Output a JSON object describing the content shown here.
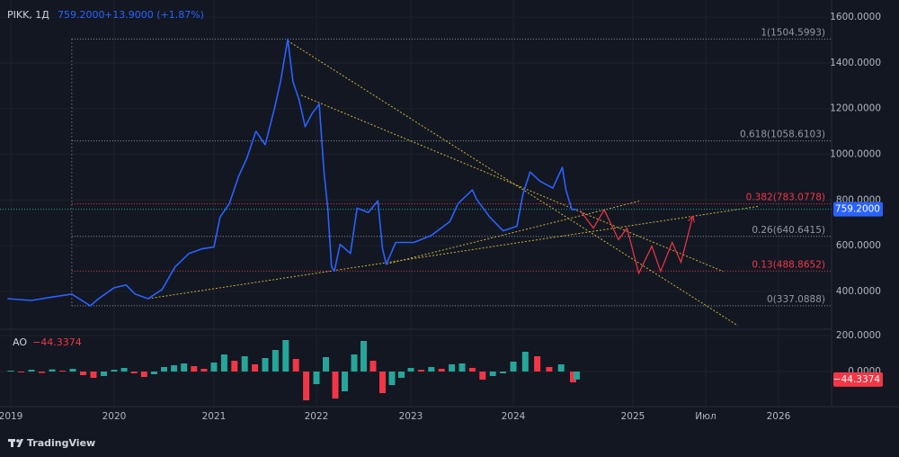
{
  "chart_data": {
    "type": "line",
    "symbol": "PIKK, 1Д",
    "change_label": "+13.9000 (+1.87%)",
    "last_price": {
      "value": 759.2,
      "label": "759.2000"
    },
    "xlim": [
      2018.9,
      2026.37
    ],
    "xticks": [
      2019,
      2020,
      2021,
      2022,
      2023,
      2024,
      2025,
      {
        "value": 2025.5,
        "label": "Июл"
      },
      2026
    ],
    "ylim": [
      238,
      1644
    ],
    "yticks": [
      {
        "value": 400,
        "label": "400.0000"
      },
      {
        "value": 600,
        "label": "600.0000"
      },
      {
        "value": 800,
        "label": "800.0000"
      },
      {
        "value": 1000,
        "label": "1000.0000"
      },
      {
        "value": 1200,
        "label": "1200.0000"
      },
      {
        "value": 1400,
        "label": "1400.0000"
      },
      {
        "value": 1600,
        "label": "1600.0000"
      }
    ],
    "grid": true,
    "series": [
      {
        "color": "#2962ff",
        "x": [
          2018.97,
          2019.2,
          2019.4,
          2019.59,
          2019.77,
          2019.85,
          2020.0,
          2020.12,
          2020.21,
          2020.34,
          2020.48,
          2020.61,
          2020.75,
          2020.88,
          2021.0,
          2021.06,
          2021.15,
          2021.24,
          2021.32,
          2021.41,
          2021.5,
          2021.59,
          2021.65,
          2021.72,
          2021.77,
          2021.83,
          2021.89,
          2021.96,
          2022.03,
          2022.08,
          2022.12,
          2022.16,
          2022.19,
          2022.25,
          2022.36,
          2022.43,
          2022.55,
          2022.65,
          2022.7,
          2022.74,
          2022.84,
          2023.03,
          2023.2,
          2023.38,
          2023.46,
          2023.6,
          2023.64,
          2023.77,
          2023.9,
          2024.03,
          2024.08,
          2024.14,
          2024.22,
          2024.33,
          2024.41,
          2024.44,
          2024.49,
          2024.53
        ],
        "values": [
          368,
          360,
          375,
          388,
          337,
          368,
          416,
          428,
          388,
          368,
          408,
          507,
          566,
          586,
          594,
          725,
          784,
          903,
          982,
          1101,
          1042,
          1200,
          1319,
          1504.6,
          1319,
          1240,
          1121,
          1180,
          1220,
          923,
          764,
          507,
          489,
          606,
          566,
          764,
          745,
          796,
          586,
          519,
          614,
          614,
          645,
          705,
          784,
          844,
          804,
          725,
          665,
          685,
          824,
          923,
          883,
          852,
          943,
          844,
          757,
          759.2
        ]
      }
    ],
    "projection": {
      "color": "#f23645",
      "x": [
        2024.56,
        2024.67,
        2024.76,
        2024.88,
        2024.95,
        2025.04,
        2025.13,
        2025.19,
        2025.27,
        2025.33,
        2025.41
      ],
      "values": [
        753,
        677,
        757,
        626,
        677,
        479,
        598,
        487,
        614,
        527,
        725
      ]
    },
    "trendline_color": "#c9b23a",
    "trendlines": [
      {
        "x": [
          2021.72,
          2025.72
        ],
        "values": [
          1497,
          250
        ]
      },
      {
        "x": [
          2021.85,
          2025.62
        ],
        "values": [
          1259,
          487
        ]
      },
      {
        "x": [
          2020.34,
          2025.86
        ],
        "values": [
          368,
          772
        ]
      },
      {
        "x": [
          2022.74,
          2025.05
        ],
        "values": [
          519,
          796
        ]
      }
    ],
    "fib_start": 2019.59,
    "fib_levels": [
      {
        "label": "1(1504.5993)",
        "value": 1504.5993,
        "color": "#9598a1"
      },
      {
        "label": "0.618(1058.6103)",
        "value": 1058.6103,
        "color": "#9598a1"
      },
      {
        "label": "0.382(783.0778)",
        "value": 783.0778,
        "color": "#f23645"
      },
      {
        "label": "0.26(640.6415)",
        "value": 640.6415,
        "color": "#9598a1"
      },
      {
        "label": "0.13(488.8652)",
        "value": 488.8652,
        "color": "#f23645"
      },
      {
        "label": "0(337.0888)",
        "value": 337.0888,
        "color": "#9598a1"
      }
    ],
    "oscillator": {
      "type": "bar",
      "name": "AO",
      "last_label": "−44.3374",
      "up_color": "#26a69a",
      "down_color": "#f23645",
      "ylim": [
        -195,
        225
      ],
      "yticks": [
        {
          "value": 200,
          "label": "200.0000"
        },
        {
          "value": 0,
          "label": "0.0000"
        }
      ],
      "x": [
        2019.0,
        2019.1,
        2019.2,
        2019.3,
        2019.4,
        2019.5,
        2019.6,
        2019.7,
        2019.8,
        2019.9,
        2020.0,
        2020.1,
        2020.2,
        2020.3,
        2020.4,
        2020.5,
        2020.6,
        2020.7,
        2020.8,
        2020.9,
        2021.0,
        2021.1,
        2021.2,
        2021.3,
        2021.4,
        2021.5,
        2021.6,
        2021.7,
        2021.8,
        2021.9,
        2022.0,
        2022.1,
        2022.2,
        2022.3,
        2022.4,
        2022.5,
        2022.6,
        2022.7,
        2022.8,
        2022.9,
        2023.0,
        2023.1,
        2023.2,
        2023.3,
        2023.4,
        2023.5,
        2023.6,
        2023.7,
        2023.8,
        2023.9,
        2024.0,
        2024.1,
        2024.2,
        2024.3,
        2024.4,
        2024.5,
        2024.53
      ],
      "values": [
        5,
        -5,
        10,
        -8,
        12,
        5,
        15,
        -20,
        -35,
        -25,
        10,
        20,
        -10,
        -30,
        -15,
        25,
        35,
        45,
        30,
        15,
        50,
        95,
        60,
        85,
        40,
        75,
        120,
        175,
        70,
        -160,
        -70,
        80,
        -150,
        -110,
        95,
        170,
        60,
        -120,
        -75,
        -35,
        20,
        10,
        25,
        15,
        40,
        45,
        20,
        -45,
        -25,
        -10,
        55,
        110,
        85,
        25,
        40,
        -60,
        -44.3374
      ]
    },
    "footer": "TradingView"
  }
}
